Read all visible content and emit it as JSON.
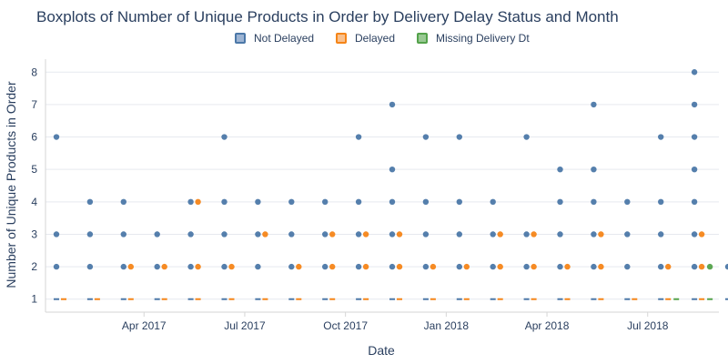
{
  "chart_data": {
    "type": "box",
    "title": "Boxplots of Number of Unique Products in Order by Delivery Delay Status and Month",
    "xlabel": "Date",
    "ylabel": "Number of Unique Products in Order",
    "x_ticks": [
      "Apr 2017",
      "Jul 2017",
      "Oct 2017",
      "Jan 2018",
      "Apr 2018",
      "Jul 2018"
    ],
    "y_ticks": [
      "1",
      "2",
      "3",
      "4",
      "5",
      "6",
      "7",
      "8"
    ],
    "ylim": [
      0.6,
      8.4
    ],
    "grid": true,
    "legend_position": "top-center",
    "months": [
      "2017-01",
      "2017-02",
      "2017-03",
      "2017-04",
      "2017-05",
      "2017-06",
      "2017-07",
      "2017-08",
      "2017-09",
      "2017-10",
      "2017-11",
      "2017-12",
      "2018-01",
      "2018-02",
      "2018-03",
      "2018-04",
      "2018-05",
      "2018-06",
      "2018-07",
      "2018-08",
      "2018-09"
    ],
    "series": [
      {
        "name": "Not Delayed",
        "color": "#4c78a8",
        "median": [
          1,
          1,
          1,
          1,
          1,
          1,
          1,
          1,
          1,
          1,
          1,
          1,
          1,
          1,
          1,
          1,
          1,
          1,
          1,
          1,
          1
        ],
        "outliers": [
          [
            2,
            3,
            6
          ],
          [
            2,
            3,
            4
          ],
          [
            2,
            3,
            4
          ],
          [
            2,
            3
          ],
          [
            2,
            3,
            4
          ],
          [
            2,
            3,
            4,
            6
          ],
          [
            2,
            3,
            4
          ],
          [
            2,
            3,
            4
          ],
          [
            2,
            3,
            4
          ],
          [
            2,
            3,
            4,
            6
          ],
          [
            2,
            3,
            4,
            5,
            7
          ],
          [
            2,
            3,
            4,
            6
          ],
          [
            2,
            3,
            4,
            6
          ],
          [
            2,
            3,
            4
          ],
          [
            2,
            3,
            6
          ],
          [
            2,
            3,
            4,
            5
          ],
          [
            2,
            3,
            4,
            5,
            7
          ],
          [
            2,
            3,
            4
          ],
          [
            2,
            3,
            4,
            6
          ],
          [
            2,
            3,
            4,
            5,
            6,
            7,
            8
          ],
          [
            2
          ]
        ]
      },
      {
        "name": "Delayed",
        "color": "#f58518",
        "median": [
          1,
          1,
          1,
          1,
          1,
          1,
          1,
          1,
          1,
          1,
          1,
          1,
          1,
          1,
          1,
          1,
          1,
          1,
          1,
          1,
          1
        ],
        "outliers": [
          [],
          [],
          [
            2
          ],
          [
            2
          ],
          [
            2,
            4
          ],
          [
            2
          ],
          [
            3
          ],
          [
            2
          ],
          [
            2,
            3
          ],
          [
            2,
            3
          ],
          [
            2,
            3
          ],
          [
            2
          ],
          [
            2
          ],
          [
            2,
            3
          ],
          [
            2,
            3
          ],
          [
            2
          ],
          [
            2,
            3
          ],
          [],
          [
            2
          ],
          [
            2,
            3
          ],
          []
        ]
      },
      {
        "name": "Missing Delivery Dt",
        "color": "#54a24b",
        "median": [
          null,
          null,
          null,
          null,
          null,
          null,
          null,
          null,
          null,
          null,
          null,
          null,
          null,
          null,
          null,
          null,
          null,
          null,
          1,
          1,
          1
        ],
        "outliers": [
          [],
          [],
          [],
          [],
          [],
          [],
          [],
          [],
          [],
          [],
          [],
          [],
          [],
          [],
          [],
          [],
          [],
          [],
          [],
          [
            2
          ],
          []
        ]
      }
    ]
  },
  "legend": [
    {
      "label": "Not Delayed",
      "fill": "#9db4d3",
      "stroke": "#4c78a8"
    },
    {
      "label": "Delayed",
      "fill": "#f9c08d",
      "stroke": "#f58518"
    },
    {
      "label": "Missing Delivery Dt",
      "fill": "#99c993",
      "stroke": "#54a24b"
    }
  ]
}
